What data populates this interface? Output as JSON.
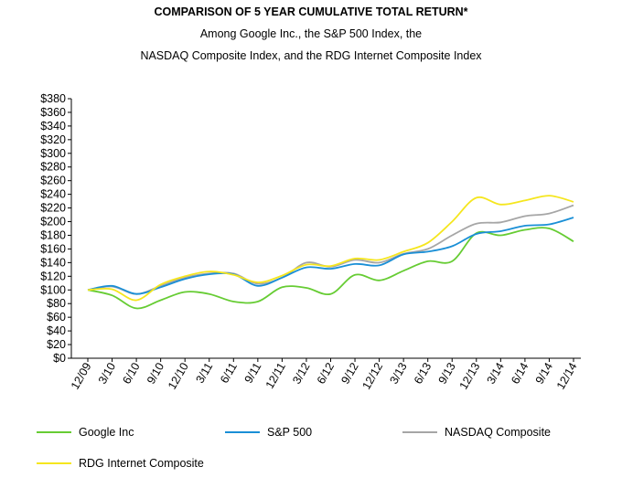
{
  "title": "COMPARISON OF 5 YEAR CUMULATIVE TOTAL RETURN*",
  "subtitle_line1": "Among Google Inc., the S&P 500 Index, the",
  "subtitle_line2": "NASDAQ Composite Index, and the RDG Internet Composite Index",
  "chart_data": {
    "type": "line",
    "x": [
      "12/09",
      "3/10",
      "6/10",
      "9/10",
      "12/10",
      "3/11",
      "6/11",
      "9/11",
      "12/11",
      "3/12",
      "6/12",
      "9/12",
      "12/12",
      "3/13",
      "6/13",
      "9/13",
      "12/13",
      "3/14",
      "6/14",
      "9/14",
      "12/14"
    ],
    "ylim": [
      0,
      380
    ],
    "yticks": [
      "$0",
      "$20",
      "$40",
      "$60",
      "$80",
      "$100",
      "$120",
      "$140",
      "$160",
      "$180",
      "$200",
      "$220",
      "$240",
      "$260",
      "$280",
      "$300",
      "$320",
      "$340",
      "$360",
      "$380"
    ],
    "grid": false,
    "legend_position": "bottom",
    "series": [
      {
        "name": "Google Inc",
        "color": "#66cc33",
        "values": [
          100,
          92,
          73,
          85,
          97,
          94,
          83,
          83,
          104,
          103,
          94,
          122,
          114,
          128,
          142,
          142,
          183,
          180,
          188,
          190,
          171
        ]
      },
      {
        "name": "S&P 500",
        "color": "#1a8fd6",
        "values": [
          100,
          106,
          94,
          104,
          116,
          123,
          123,
          106,
          118,
          133,
          131,
          138,
          136,
          152,
          156,
          164,
          182,
          186,
          194,
          196,
          206
        ]
      },
      {
        "name": "NASDAQ Composite",
        "color": "#a6a6a6",
        "values": [
          100,
          105,
          94,
          106,
          118,
          124,
          124,
          109,
          118,
          140,
          134,
          144,
          140,
          153,
          160,
          180,
          197,
          199,
          208,
          212,
          224
        ]
      },
      {
        "name": "RDG Internet Composite",
        "color": "#f5e61e",
        "values": [
          100,
          101,
          85,
          108,
          120,
          127,
          122,
          111,
          121,
          137,
          135,
          146,
          144,
          156,
          169,
          200,
          235,
          225,
          231,
          238,
          229
        ]
      }
    ]
  }
}
